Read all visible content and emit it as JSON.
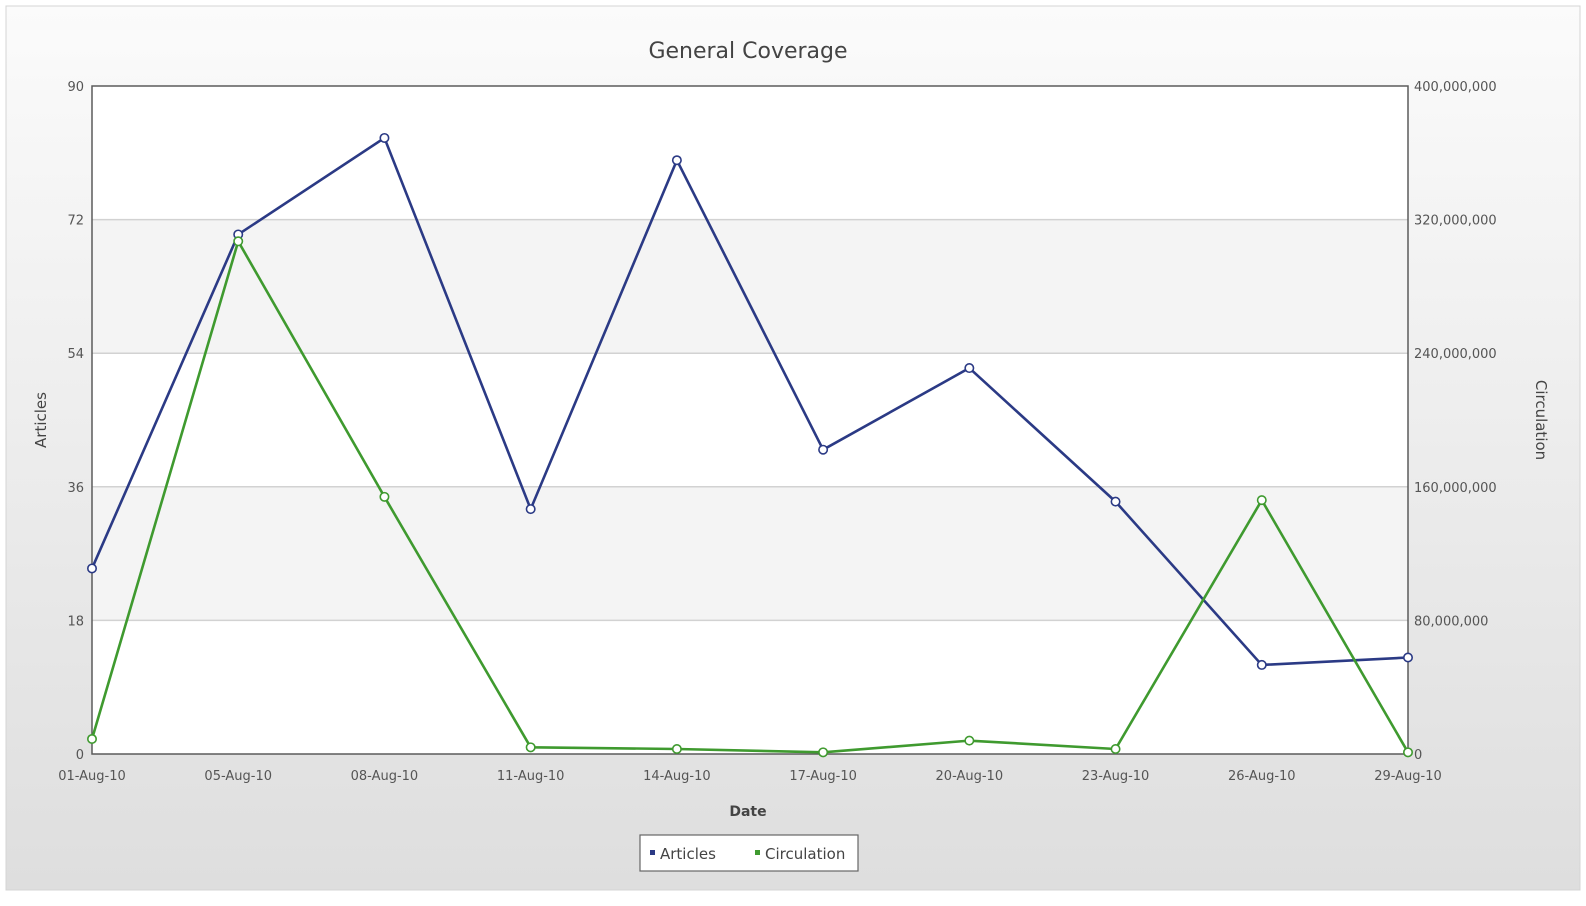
{
  "chart_data": {
    "type": "line",
    "title": "General Coverage",
    "xlabel": "Date",
    "ylabel_left": "Articles",
    "ylabel_right": "Circulation",
    "x_tick_labels": [
      "01-Aug-10",
      "05-Aug-10",
      "08-Aug-10",
      "11-Aug-10",
      "14-Aug-10",
      "17-Aug-10",
      "20-Aug-10",
      "23-Aug-10",
      "26-Aug-10",
      "29-Aug-10"
    ],
    "y_left": {
      "range": [
        0,
        90
      ],
      "ticks": [
        "0",
        "18",
        "36",
        "54",
        "72",
        "90"
      ]
    },
    "y_right": {
      "range": [
        0,
        400000000
      ],
      "ticks": [
        "0",
        "80,000,000",
        "160,000,000",
        "240,000,000",
        "320,000,000",
        "400,000,000"
      ]
    },
    "grid": true,
    "legend_position": "bottom-center",
    "series": [
      {
        "name": "Articles",
        "axis": "left",
        "color": "#2b3a85",
        "values": [
          25,
          70,
          83,
          33,
          80,
          41,
          52,
          34,
          12,
          13
        ]
      },
      {
        "name": "Circulation",
        "axis": "right",
        "color": "#3f9a2f",
        "values": [
          9000000,
          307000000,
          154000000,
          4000000,
          3000000,
          1000000,
          8000000,
          3000000,
          152000000,
          1000000
        ]
      }
    ]
  }
}
